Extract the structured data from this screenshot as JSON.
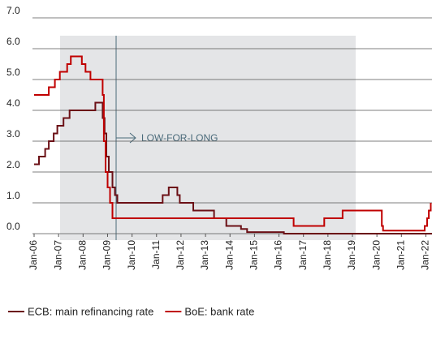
{
  "chart_data": {
    "type": "line",
    "step": true,
    "annotation": "LOW-FOR-LONG",
    "xlim": [
      2006,
      2022.25
    ],
    "ylim": [
      0,
      7
    ],
    "xticks": [
      {
        "value": 2006,
        "label": "Jan-06"
      },
      {
        "value": 2007,
        "label": "Jan-07"
      },
      {
        "value": 2008,
        "label": "Jan-08"
      },
      {
        "value": 2009,
        "label": "Jan-09"
      },
      {
        "value": 2010,
        "label": "Jan-10"
      },
      {
        "value": 2011,
        "label": "Jan-11"
      },
      {
        "value": 2012,
        "label": "Jan-12"
      },
      {
        "value": 2013,
        "label": "Jan-13"
      },
      {
        "value": 2014,
        "label": "Jan-14"
      },
      {
        "value": 2015,
        "label": "Jan-15"
      },
      {
        "value": 2016,
        "label": "Jan-16"
      },
      {
        "value": 2017,
        "label": "Jan-17"
      },
      {
        "value": 2018,
        "label": "Jan-18"
      },
      {
        "value": 2019,
        "label": "Jan-19"
      },
      {
        "value": 2020,
        "label": "Jan-20"
      },
      {
        "value": 2021,
        "label": "Jan-21"
      },
      {
        "value": 2022,
        "label": "Jan-22"
      }
    ],
    "yticks": [
      {
        "value": 0,
        "label": "0.0"
      },
      {
        "value": 1,
        "label": "1.0"
      },
      {
        "value": 2,
        "label": "2.0"
      },
      {
        "value": 3,
        "label": "3.0"
      },
      {
        "value": 4,
        "label": "4.0"
      },
      {
        "value": 5,
        "label": "5.0"
      },
      {
        "value": 6,
        "label": "6.0"
      },
      {
        "value": 7,
        "label": "7.0"
      }
    ],
    "grid": true,
    "legend": "bottom",
    "series": [
      {
        "name": "ECB: main refinancing rate",
        "color": "#6b1016",
        "x": [
          2006.0,
          2006.2,
          2006.45,
          2006.6,
          2006.8,
          2006.95,
          2007.2,
          2007.45,
          2008.5,
          2008.8,
          2008.88,
          2008.95,
          2009.05,
          2009.2,
          2009.3,
          2009.4,
          2011.25,
          2011.5,
          2011.85,
          2011.95,
          2012.5,
          2013.35,
          2013.85,
          2014.45,
          2014.7,
          2016.2,
          2022.25
        ],
        "values": [
          2.25,
          2.5,
          2.75,
          3.0,
          3.25,
          3.5,
          3.75,
          4.0,
          4.25,
          3.75,
          3.25,
          2.5,
          2.0,
          1.5,
          1.25,
          1.0,
          1.25,
          1.5,
          1.25,
          1.0,
          0.75,
          0.5,
          0.25,
          0.15,
          0.05,
          0.0,
          0.0
        ]
      },
      {
        "name": "BoE: bank rate",
        "color": "#c00000",
        "x": [
          2006.0,
          2006.6,
          2006.85,
          2007.05,
          2007.35,
          2007.5,
          2007.95,
          2008.1,
          2008.3,
          2008.8,
          2008.85,
          2008.92,
          2009.0,
          2009.1,
          2009.2,
          2016.6,
          2017.85,
          2018.6,
          2020.2,
          2020.25,
          2021.95,
          2022.05,
          2022.12,
          2022.2
        ],
        "values": [
          4.5,
          4.75,
          5.0,
          5.25,
          5.5,
          5.75,
          5.5,
          5.25,
          5.0,
          4.5,
          3.0,
          2.0,
          1.5,
          1.0,
          0.5,
          0.25,
          0.5,
          0.75,
          0.25,
          0.1,
          0.25,
          0.5,
          0.75,
          1.0
        ]
      }
    ]
  }
}
